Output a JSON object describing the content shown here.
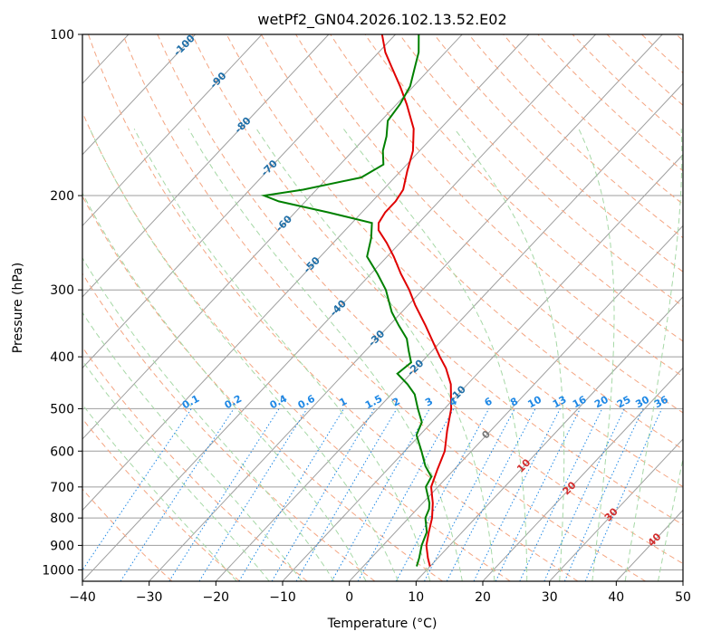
{
  "chart_data": {
    "type": "line",
    "subtype": "skew-t log-p",
    "title": "wetPf2_GN04.2026.102.13.52.E02",
    "xlabel": "Temperature (°C)",
    "ylabel": "Pressure (hPa)",
    "xlim": [
      -40,
      50
    ],
    "ylim": [
      1050,
      100
    ],
    "y_scale": "log",
    "grid": true,
    "x_ticks": [
      "−40",
      "−30",
      "−20",
      "−10",
      "0",
      "10",
      "20",
      "30",
      "40",
      "50"
    ],
    "x_tick_values": [
      -40,
      -30,
      -20,
      -10,
      0,
      10,
      20,
      30,
      40,
      50
    ],
    "y_ticks": [
      "100",
      "200",
      "300",
      "400",
      "500",
      "600",
      "700",
      "800",
      "900",
      "1000"
    ],
    "y_tick_values": [
      100,
      200,
      300,
      400,
      500,
      600,
      700,
      800,
      900,
      1000
    ],
    "series": [
      {
        "color": "#e00000",
        "p": [
          985,
          950,
          900,
          850,
          800,
          750,
          700,
          650,
          600,
          550,
          500,
          450,
          420,
          400,
          380,
          350,
          320,
          300,
          280,
          260,
          245,
          232,
          225,
          215,
          205,
          195,
          180,
          165,
          150,
          135,
          125,
          115,
          108,
          100
        ],
        "t": [
          10.0,
          8.5,
          6.5,
          5.0,
          3.5,
          1.5,
          -1.0,
          -2.5,
          -4.0,
          -6.5,
          -9.0,
          -12.5,
          -15.5,
          -18.0,
          -20.5,
          -24.5,
          -29.0,
          -32.0,
          -35.5,
          -39.0,
          -42.0,
          -45.0,
          -46.0,
          -46.5,
          -46.5,
          -47.0,
          -49.0,
          -51.0,
          -54.0,
          -58.5,
          -62.0,
          -66.0,
          -69.0,
          -72.0
        ]
      },
      {
        "color": "#008000",
        "p": [
          985,
          950,
          900,
          850,
          800,
          770,
          750,
          700,
          670,
          640,
          600,
          560,
          530,
          500,
          470,
          450,
          430,
          410,
          390,
          370,
          350,
          330,
          300,
          280,
          260,
          240,
          225,
          215,
          205,
          200,
          195,
          185,
          175,
          165,
          155,
          145,
          135,
          125,
          115,
          108,
          100
        ],
        "t": [
          8.0,
          7.2,
          5.8,
          4.7,
          2.5,
          1.8,
          1.0,
          -1.8,
          -2.4,
          -4.8,
          -7.5,
          -10.5,
          -11.5,
          -14.0,
          -16.5,
          -19.0,
          -22.0,
          -21.5,
          -23.5,
          -25.5,
          -28.5,
          -31.5,
          -35.5,
          -39.0,
          -43.0,
          -45.0,
          -47.0,
          -55.0,
          -64.0,
          -67.0,
          -62.0,
          -55.0,
          -53.5,
          -55.5,
          -57.0,
          -59.0,
          -59.5,
          -60.5,
          -62.5,
          -64.0,
          -66.5
        ]
      }
    ],
    "reference_lines": {
      "isotherm_step": 10,
      "dry_adiabat_labels": [
        "-100",
        "-90",
        "-80",
        "-70",
        "-60",
        "-50",
        "-40",
        "-30",
        "-20",
        "-10",
        "0"
      ],
      "moist_adiabat_labels": [
        "10",
        "20",
        "30",
        "40"
      ],
      "mixing_ratio_labels": [
        "0.1",
        "0.2",
        "0.4",
        "0.6",
        "1",
        "1.5",
        "2",
        "3",
        "4",
        "6",
        "8",
        "10",
        "13",
        "16",
        "20",
        "25",
        "30",
        "36"
      ]
    }
  },
  "colors": {
    "temperature": "#e00000",
    "dewpoint": "#008000",
    "dry_adiabat": "#f4a582",
    "moist_adiabat": "#a6d8a6",
    "mixing_ratio": "#1e88e5",
    "isotherm": "#9e9e9e",
    "isobar": "#9e9e9e"
  }
}
